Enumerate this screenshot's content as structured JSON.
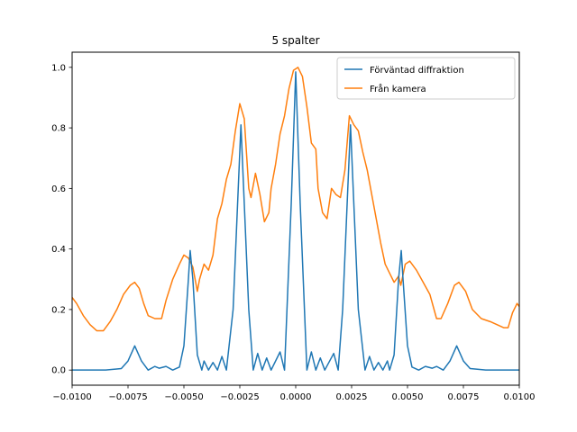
{
  "chart_data": {
    "type": "line",
    "title": "5 spalter",
    "xlabel": "",
    "ylabel": "",
    "xlim": [
      -0.01,
      0.01
    ],
    "ylim": [
      -0.05,
      1.05
    ],
    "x_ticks": [
      -0.01,
      -0.0075,
      -0.005,
      -0.0025,
      0.0,
      0.0025,
      0.005,
      0.0075,
      0.01
    ],
    "x_tick_labels": [
      "−0.0100",
      "−0.0075",
      "−0.0050",
      "−0.0025",
      "0.0000",
      "0.0025",
      "0.0050",
      "0.0075",
      "0.0100"
    ],
    "y_ticks": [
      0.0,
      0.2,
      0.4,
      0.6,
      0.8,
      1.0
    ],
    "y_tick_labels": [
      "0.0",
      "0.2",
      "0.4",
      "0.6",
      "0.8",
      "1.0"
    ],
    "grid": false,
    "legend_position": "top-right",
    "series": [
      {
        "name": "Förväntad diffraktion",
        "color": "#1f77b4",
        "points": [
          [
            -0.01,
            0.0
          ],
          [
            -0.0085,
            0.0
          ],
          [
            -0.0078,
            0.005
          ],
          [
            -0.0075,
            0.03
          ],
          [
            -0.0072,
            0.08
          ],
          [
            -0.0069,
            0.03
          ],
          [
            -0.0066,
            0.0
          ],
          [
            -0.0063,
            0.012
          ],
          [
            -0.0061,
            0.006
          ],
          [
            -0.0058,
            0.012
          ],
          [
            -0.0055,
            0.0
          ],
          [
            -0.0052,
            0.01
          ],
          [
            -0.005,
            0.08
          ],
          [
            -0.0048,
            0.3
          ],
          [
            -0.00472,
            0.395
          ],
          [
            -0.0046,
            0.3
          ],
          [
            -0.0044,
            0.05
          ],
          [
            -0.0042,
            0.0
          ],
          [
            -0.0041,
            0.03
          ],
          [
            -0.0039,
            0.0
          ],
          [
            -0.0037,
            0.025
          ],
          [
            -0.0035,
            0.0
          ],
          [
            -0.0033,
            0.045
          ],
          [
            -0.0031,
            0.0
          ],
          [
            -0.0028,
            0.2
          ],
          [
            -0.00245,
            0.81
          ],
          [
            -0.0021,
            0.2
          ],
          [
            -0.0019,
            0.0
          ],
          [
            -0.0017,
            0.055
          ],
          [
            -0.0015,
            0.0
          ],
          [
            -0.0013,
            0.04
          ],
          [
            -0.0011,
            0.0
          ],
          [
            -0.0007,
            0.06
          ],
          [
            -0.0005,
            0.0
          ],
          [
            -0.0002,
            0.55
          ],
          [
            0.0,
            0.985
          ],
          [
            0.0002,
            0.55
          ],
          [
            0.0005,
            0.0
          ],
          [
            0.0007,
            0.06
          ],
          [
            0.0009,
            0.0
          ],
          [
            0.0011,
            0.04
          ],
          [
            0.0013,
            0.0
          ],
          [
            0.0017,
            0.055
          ],
          [
            0.0019,
            0.0
          ],
          [
            0.0021,
            0.2
          ],
          [
            0.00245,
            0.81
          ],
          [
            0.0028,
            0.2
          ],
          [
            0.0031,
            0.0
          ],
          [
            0.0033,
            0.045
          ],
          [
            0.0035,
            0.0
          ],
          [
            0.0037,
            0.025
          ],
          [
            0.0039,
            0.0
          ],
          [
            0.0041,
            0.03
          ],
          [
            0.0042,
            0.0
          ],
          [
            0.0044,
            0.05
          ],
          [
            0.0046,
            0.3
          ],
          [
            0.00472,
            0.395
          ],
          [
            0.0048,
            0.3
          ],
          [
            0.005,
            0.08
          ],
          [
            0.0052,
            0.01
          ],
          [
            0.0055,
            0.0
          ],
          [
            0.0058,
            0.012
          ],
          [
            0.0061,
            0.006
          ],
          [
            0.0063,
            0.012
          ],
          [
            0.0066,
            0.0
          ],
          [
            0.0069,
            0.03
          ],
          [
            0.0072,
            0.08
          ],
          [
            0.0075,
            0.03
          ],
          [
            0.0078,
            0.005
          ],
          [
            0.0085,
            0.0
          ],
          [
            0.01,
            0.0
          ]
        ]
      },
      {
        "name": "Från kamera",
        "color": "#ff7f0e",
        "points": [
          [
            -0.01,
            0.24
          ],
          [
            -0.0098,
            0.22
          ],
          [
            -0.0095,
            0.18
          ],
          [
            -0.0092,
            0.15
          ],
          [
            -0.0089,
            0.13
          ],
          [
            -0.0086,
            0.13
          ],
          [
            -0.0083,
            0.16
          ],
          [
            -0.008,
            0.2
          ],
          [
            -0.0077,
            0.25
          ],
          [
            -0.0074,
            0.28
          ],
          [
            -0.0072,
            0.29
          ],
          [
            -0.007,
            0.27
          ],
          [
            -0.0068,
            0.22
          ],
          [
            -0.0066,
            0.18
          ],
          [
            -0.0063,
            0.17
          ],
          [
            -0.006,
            0.17
          ],
          [
            -0.0058,
            0.23
          ],
          [
            -0.0055,
            0.3
          ],
          [
            -0.0052,
            0.35
          ],
          [
            -0.005,
            0.38
          ],
          [
            -0.0048,
            0.37
          ],
          [
            -0.0046,
            0.34
          ],
          [
            -0.0044,
            0.26
          ],
          [
            -0.0043,
            0.3
          ],
          [
            -0.0041,
            0.35
          ],
          [
            -0.0039,
            0.33
          ],
          [
            -0.0037,
            0.38
          ],
          [
            -0.0035,
            0.5
          ],
          [
            -0.0033,
            0.55
          ],
          [
            -0.0031,
            0.63
          ],
          [
            -0.0029,
            0.68
          ],
          [
            -0.0027,
            0.79
          ],
          [
            -0.0025,
            0.88
          ],
          [
            -0.0023,
            0.83
          ],
          [
            -0.0021,
            0.6
          ],
          [
            -0.002,
            0.57
          ],
          [
            -0.0018,
            0.65
          ],
          [
            -0.0016,
            0.58
          ],
          [
            -0.0014,
            0.49
          ],
          [
            -0.0012,
            0.52
          ],
          [
            -0.0011,
            0.6
          ],
          [
            -0.0009,
            0.68
          ],
          [
            -0.0007,
            0.78
          ],
          [
            -0.0005,
            0.84
          ],
          [
            -0.0003,
            0.93
          ],
          [
            -0.0001,
            0.99
          ],
          [
            0.0001,
            1.0
          ],
          [
            0.0003,
            0.97
          ],
          [
            0.0005,
            0.87
          ],
          [
            0.0007,
            0.75
          ],
          [
            0.0009,
            0.73
          ],
          [
            0.001,
            0.6
          ],
          [
            0.0012,
            0.52
          ],
          [
            0.0014,
            0.5
          ],
          [
            0.0016,
            0.6
          ],
          [
            0.0018,
            0.58
          ],
          [
            0.002,
            0.57
          ],
          [
            0.0022,
            0.66
          ],
          [
            0.0024,
            0.84
          ],
          [
            0.0026,
            0.81
          ],
          [
            0.0028,
            0.79
          ],
          [
            0.003,
            0.72
          ],
          [
            0.0032,
            0.66
          ],
          [
            0.0034,
            0.58
          ],
          [
            0.0036,
            0.5
          ],
          [
            0.0038,
            0.42
          ],
          [
            0.004,
            0.35
          ],
          [
            0.0042,
            0.32
          ],
          [
            0.0044,
            0.29
          ],
          [
            0.0046,
            0.31
          ],
          [
            0.0047,
            0.28
          ],
          [
            0.0049,
            0.35
          ],
          [
            0.0051,
            0.36
          ],
          [
            0.0054,
            0.33
          ],
          [
            0.0057,
            0.29
          ],
          [
            0.006,
            0.25
          ],
          [
            0.0063,
            0.17
          ],
          [
            0.0065,
            0.17
          ],
          [
            0.0068,
            0.22
          ],
          [
            0.0071,
            0.28
          ],
          [
            0.0073,
            0.29
          ],
          [
            0.0076,
            0.26
          ],
          [
            0.0079,
            0.2
          ],
          [
            0.0083,
            0.17
          ],
          [
            0.0087,
            0.16
          ],
          [
            0.009,
            0.15
          ],
          [
            0.0093,
            0.14
          ],
          [
            0.0095,
            0.14
          ],
          [
            0.0097,
            0.19
          ],
          [
            0.0099,
            0.22
          ],
          [
            0.01,
            0.21
          ]
        ]
      }
    ]
  }
}
